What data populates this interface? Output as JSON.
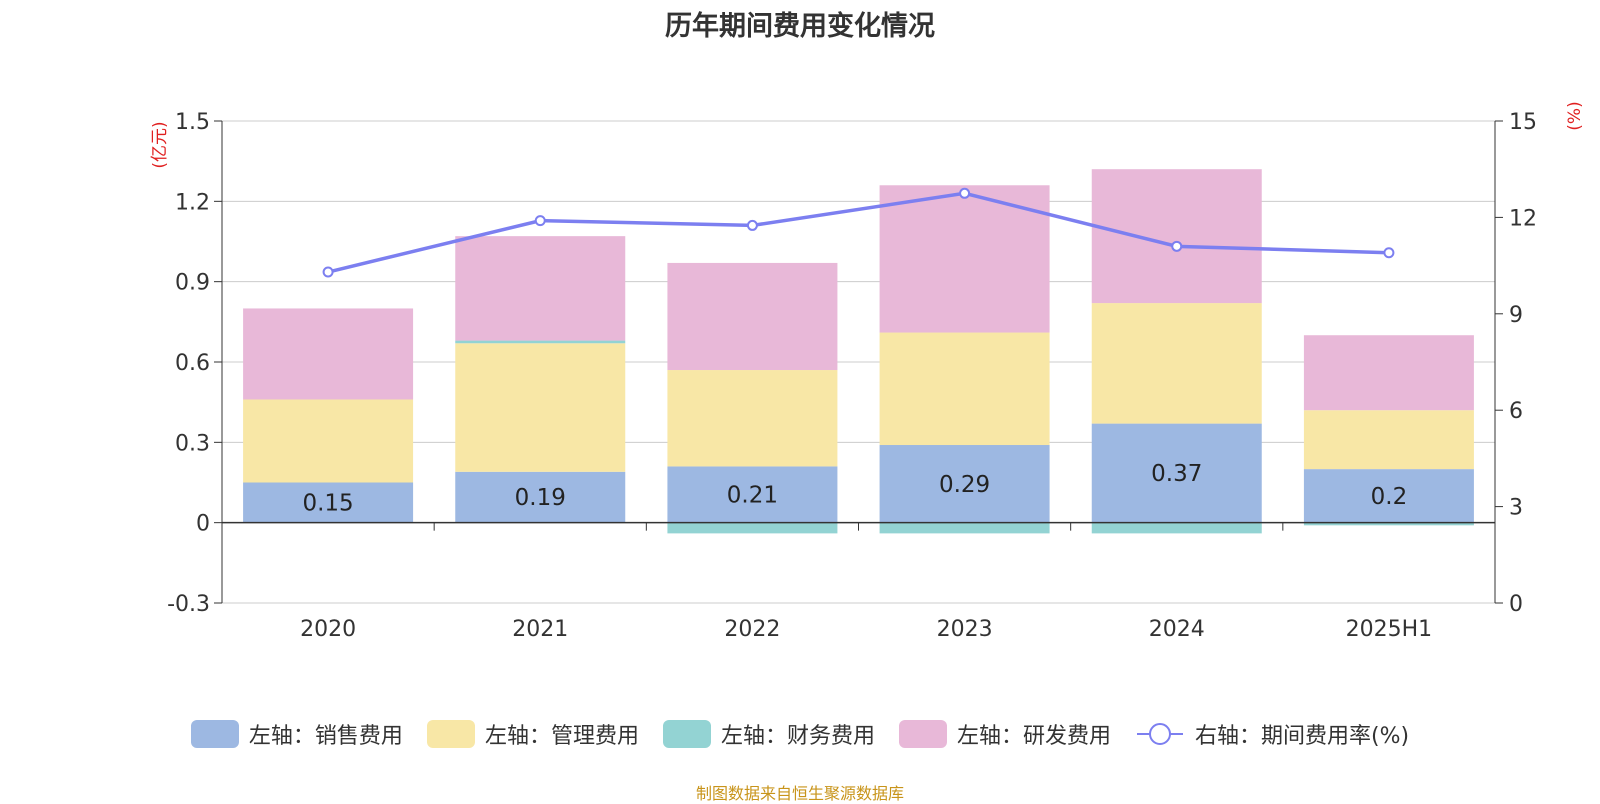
{
  "title": "历年期间费用变化情况",
  "source_note": "制图数据来自恒生聚源数据库",
  "colors": {
    "sales": "#9db8e2",
    "admin": "#f8e7a6",
    "finance": "#93d3d3",
    "rnd": "#e8b8d8",
    "rate_line": "#7c7ff0",
    "grid": "#cccccc",
    "axis_unit": "#e02020"
  },
  "legend": [
    {
      "label": "左轴：销售费用",
      "kind": "bar",
      "color_key": "sales"
    },
    {
      "label": "左轴：管理费用",
      "kind": "bar",
      "color_key": "admin"
    },
    {
      "label": "左轴：财务费用",
      "kind": "bar",
      "color_key": "finance"
    },
    {
      "label": "左轴：研发费用",
      "kind": "bar",
      "color_key": "rnd"
    },
    {
      "label": "右轴：期间费用率(%)",
      "kind": "line",
      "color_key": "rate_line"
    }
  ],
  "chart_data": {
    "type": "bar",
    "stacked": true,
    "categories": [
      "2020",
      "2021",
      "2022",
      "2023",
      "2024",
      "2025H1"
    ],
    "series": [
      {
        "name": "左轴：销售费用",
        "axis": "left",
        "values": [
          0.15,
          0.19,
          0.21,
          0.29,
          0.37,
          0.2
        ],
        "data_labels": [
          "0.15",
          "0.19",
          "0.21",
          "0.29",
          "0.37",
          "0.2"
        ]
      },
      {
        "name": "左轴：管理费用",
        "axis": "left",
        "values": [
          0.31,
          0.48,
          0.36,
          0.42,
          0.45,
          0.22
        ]
      },
      {
        "name": "左轴：财务费用",
        "axis": "left",
        "values": [
          0.0,
          0.01,
          -0.04,
          -0.04,
          -0.04,
          -0.01
        ]
      },
      {
        "name": "左轴：研发费用",
        "axis": "left",
        "values": [
          0.34,
          0.39,
          0.4,
          0.55,
          0.5,
          0.28
        ]
      },
      {
        "name": "右轴：期间费用率(%)",
        "axis": "right",
        "type": "line",
        "values": [
          10.3,
          11.9,
          11.75,
          12.75,
          11.1,
          10.9
        ]
      }
    ],
    "left_axis": {
      "unit": "(亿元)",
      "ylim": [
        -0.3,
        1.5
      ],
      "ticks": [
        -0.3,
        0,
        0.3,
        0.6,
        0.9,
        1.2,
        1.5
      ],
      "tick_labels": [
        "-0.3",
        "0",
        "0.3",
        "0.6",
        "0.9",
        "1.2",
        "1.5"
      ]
    },
    "right_axis": {
      "unit": "(%)",
      "ylim": [
        0,
        15
      ],
      "ticks": [
        0,
        3,
        6,
        9,
        12,
        15
      ],
      "tick_labels": [
        "0",
        "3",
        "6",
        "9",
        "12",
        "15"
      ]
    },
    "grid": true,
    "legend_position": "bottom"
  }
}
